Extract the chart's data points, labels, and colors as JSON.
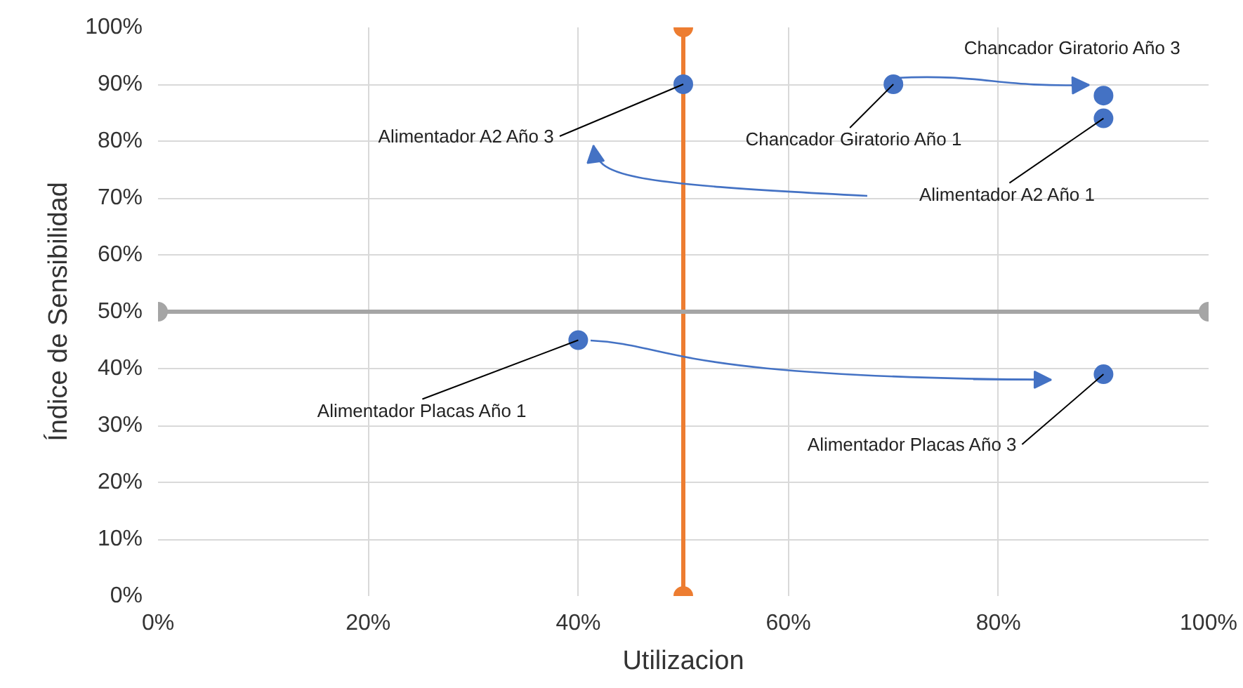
{
  "chart_data": {
    "type": "scatter",
    "xlabel": "Utilizacion",
    "ylabel": "Índice de Sensibilidad",
    "xlim": [
      0,
      100
    ],
    "ylim": [
      0,
      100
    ],
    "xticks": [
      {
        "value": 0,
        "label": "0%"
      },
      {
        "value": 20,
        "label": "20%"
      },
      {
        "value": 40,
        "label": "40%"
      },
      {
        "value": 60,
        "label": "60%"
      },
      {
        "value": 80,
        "label": "80%"
      },
      {
        "value": 100,
        "label": "100%"
      }
    ],
    "yticks": [
      {
        "value": 0,
        "label": "0%"
      },
      {
        "value": 10,
        "label": "10%"
      },
      {
        "value": 20,
        "label": "20%"
      },
      {
        "value": 30,
        "label": "30%"
      },
      {
        "value": 40,
        "label": "40%"
      },
      {
        "value": 50,
        "label": "50%"
      },
      {
        "value": 60,
        "label": "60%"
      },
      {
        "value": 70,
        "label": "70%"
      },
      {
        "value": 80,
        "label": "80%"
      },
      {
        "value": 90,
        "label": "90%"
      },
      {
        "value": 100,
        "label": "100%"
      }
    ],
    "grid": true,
    "marker": "circle",
    "series": [
      {
        "type": "line",
        "color": "#ed7d31",
        "x": [
          50,
          50
        ],
        "values": [
          0,
          100
        ]
      },
      {
        "type": "line",
        "color": "#a5a5a5",
        "x": [
          0,
          100
        ],
        "values": [
          50,
          50
        ]
      },
      {
        "type": "scatter",
        "color": "#4472c4",
        "x": [
          50,
          70,
          90,
          90,
          40,
          90
        ],
        "values": [
          90,
          90,
          88,
          84,
          45,
          39
        ]
      }
    ],
    "annotations": [
      {
        "text": "Alimentador A2 Año 3",
        "x": 50,
        "y": 90
      },
      {
        "text": "Chancador Giratorio Año 1",
        "x": 70,
        "y": 90
      },
      {
        "text": "Chancador Giratorio Año 3",
        "x": 90,
        "y": 88
      },
      {
        "text": "Alimentador A2 Año 1",
        "x": 90,
        "y": 84
      },
      {
        "text": "Alimentador Placas Año 1",
        "x": 40,
        "y": 45
      },
      {
        "text": "Alimentador Placas Año 3",
        "x": 90,
        "y": 39
      }
    ]
  }
}
